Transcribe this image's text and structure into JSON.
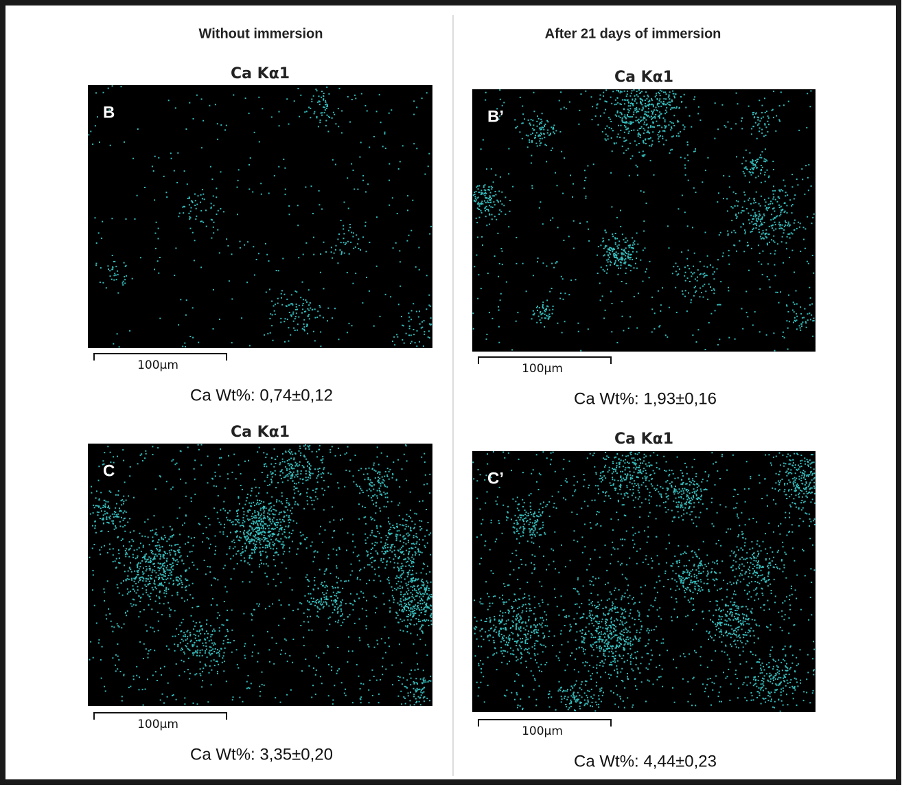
{
  "columns": [
    {
      "heading": "Without immersion"
    },
    {
      "heading": "After 21 days of immersion"
    }
  ],
  "panels": [
    {
      "title": "Ca Kα1",
      "label": "B",
      "scale_bar": "100µm",
      "caption": "Ca Wt%: 0,74±0,12"
    },
    {
      "title": "Ca Kα1",
      "label": "B’",
      "scale_bar": "100µm",
      "caption": "Ca Wt%: 1,93±0,16"
    },
    {
      "title": "Ca Kα1",
      "label": "C",
      "scale_bar": "100µm",
      "caption": "Ca Wt%: 3,35±0,20"
    },
    {
      "title": "Ca Kα1",
      "label": "C’",
      "scale_bar": "100µm",
      "caption": "Ca Wt%: 4,44±0,23"
    }
  ]
}
